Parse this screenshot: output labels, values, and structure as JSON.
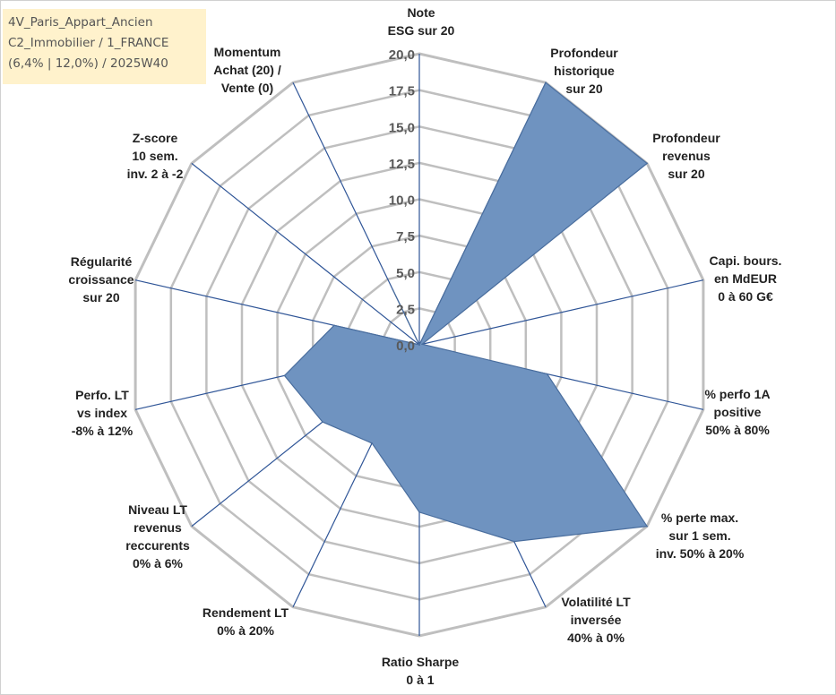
{
  "header": {
    "line1": "4V_Paris_Appart_Ancien",
    "line2": "C2_Immobilier / 1_FRANCE",
    "line3": "(6,4% | 12,0%) / 2025W40"
  },
  "colors": {
    "fill": "#6f93c0",
    "stroke": "#4a6e9e",
    "grid": "#bfbfbf",
    "spokes": "#2f5597",
    "title_box": "#fff2cc"
  },
  "chart_data": {
    "type": "radar",
    "rmin": 0,
    "rmax": 20,
    "tick_labels": [
      "0,0",
      "2,5",
      "5,0",
      "7,5",
      "10,0",
      "12,5",
      "15,0",
      "17,5",
      "20,0"
    ],
    "axes": [
      {
        "label": [
          "Note",
          "ESG sur 20"
        ],
        "value": 0
      },
      {
        "label": [
          "Profondeur",
          "historique",
          "sur 20"
        ],
        "value": 20
      },
      {
        "label": [
          "Profondeur",
          "revenus",
          "sur 20"
        ],
        "value": 20
      },
      {
        "label": [
          "Capi. bours.",
          "en MdEUR",
          "0 à 60 G€"
        ],
        "value": 0.2
      },
      {
        "label": [
          "% perfo 1A",
          "positive",
          "50% à 80%"
        ],
        "value": 9
      },
      {
        "label": [
          "% perte max.",
          "sur 1 sem.",
          "inv. 50% à 20%"
        ],
        "value": 20
      },
      {
        "label": [
          "Volatilité LT",
          "inversée",
          "40% à 0%"
        ],
        "value": 15
      },
      {
        "label": [
          "Ratio Sharpe",
          "0 à 1"
        ],
        "value": 11.5
      },
      {
        "label": [
          "Rendement LT",
          "0% à 20%"
        ],
        "value": 7.5
      },
      {
        "label": [
          "Niveau LT",
          "revenus",
          "reccurents",
          "0% à 6%"
        ],
        "value": 8.5
      },
      {
        "label": [
          "Perfo. LT",
          "vs index",
          "-8% à 12%"
        ],
        "value": 9.5
      },
      {
        "label": [
          "Régularité",
          "croissance",
          "sur 20"
        ],
        "value": 6
      },
      {
        "label": [
          "Z-score",
          "10 sem.",
          "inv. 2 à -2"
        ],
        "value": 0
      },
      {
        "label": [
          "Momentum",
          "Achat (20) /",
          "Vente (0)"
        ],
        "value": 4.2
      }
    ]
  }
}
